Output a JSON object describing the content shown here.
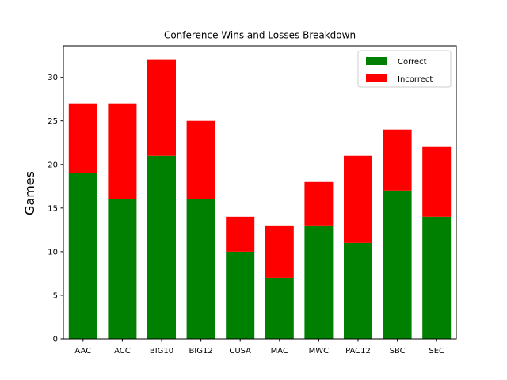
{
  "chart_data": {
    "type": "bar",
    "stacked": true,
    "title": "Conference Wins and Losses Breakdown",
    "xlabel": "",
    "ylabel": "Games",
    "categories": [
      "AAC",
      "ACC",
      "BIG10",
      "BIG12",
      "CUSA",
      "MAC",
      "MWC",
      "PAC12",
      "SBC",
      "SEC"
    ],
    "series": [
      {
        "name": "Correct",
        "color": "#008000",
        "values": [
          19,
          16,
          21,
          16,
          10,
          7,
          13,
          11,
          17,
          14
        ]
      },
      {
        "name": "Incorrect",
        "color": "#ff0000",
        "values": [
          8,
          11,
          11,
          9,
          4,
          6,
          5,
          10,
          7,
          8
        ]
      }
    ],
    "ylim": [
      0,
      33.6
    ],
    "yticks": [
      0,
      5,
      10,
      15,
      20,
      25,
      30
    ],
    "grid": false,
    "legend_position": "top-right"
  }
}
